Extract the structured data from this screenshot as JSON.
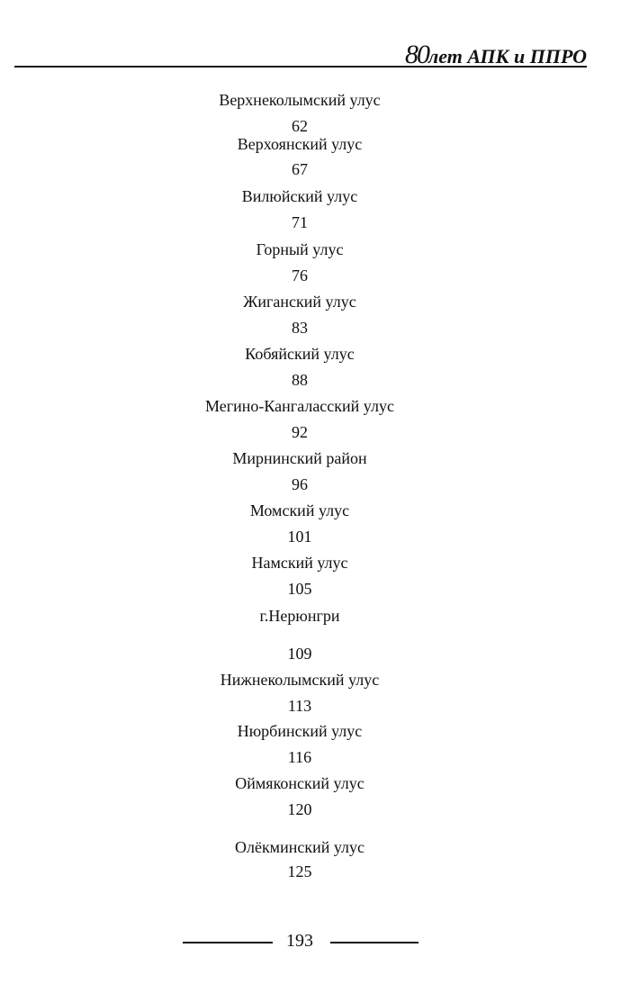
{
  "header": {
    "title_number": "80",
    "title_text": "лет АПК и ППРО"
  },
  "entries": [
    {
      "name": "Верхнеколымский улус",
      "page": "62"
    },
    {
      "name": "Верхоянский  улус",
      "page": "67"
    },
    {
      "name": "Вилюйский  улус",
      "page": "71"
    },
    {
      "name": "Горный улус",
      "page": "76"
    },
    {
      "name": "Жиганский  улус",
      "page": "83"
    },
    {
      "name": "Кобяйский улус",
      "page": "88"
    },
    {
      "name": "Мегино-Кангаласский  улус",
      "page": "92"
    },
    {
      "name": "Мирнинский  район",
      "page": "96"
    },
    {
      "name": "Момский  улус",
      "page": "101"
    },
    {
      "name": "Намский  улус",
      "page": "105"
    },
    {
      "name": "г.Нерюнгри",
      "page": "109"
    },
    {
      "name": "Нижнеколымский улус",
      "page": "113"
    },
    {
      "name": "Нюрбинский улус",
      "page": "116"
    },
    {
      "name": "Оймяконский  улус",
      "page": "120"
    },
    {
      "name": "Олёкминский  улус",
      "page": "125"
    }
  ],
  "footer": {
    "page_number": "193"
  }
}
